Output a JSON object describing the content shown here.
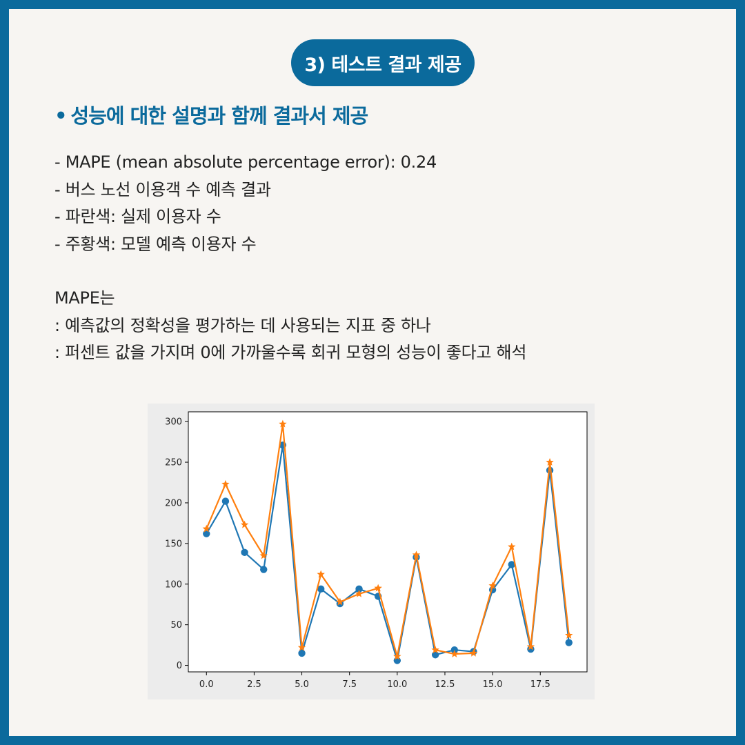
{
  "section_pill": "3) 테스트 결과 제공",
  "heading": {
    "bullet": "•",
    "text": "성능에 대한 설명과 함께 결과서 제공"
  },
  "lines": [
    "- MAPE (mean absolute percentage error): 0.24",
    "- 버스 노선 이용객 수 예측 결과",
    "- 파란색: 실제 이용자 수",
    "- 주황색: 모델 예측 이용자 수"
  ],
  "mape_lines": [
    "MAPE는",
    ": 예측값의 정확성을 평가하는 데 사용되는 지표 중 하나",
    ": 퍼센트 값을 가지며 0에 가까울수록 회귀 모형의 성능이 좋다고 해석"
  ],
  "colors": {
    "brand": "#0b6a9c",
    "actual": "#1f77b4",
    "predicted": "#ff7f0e"
  },
  "chart_data": {
    "type": "line",
    "title": "",
    "xlabel": "",
    "ylabel": "",
    "xlim": [
      -0.95,
      19.95
    ],
    "ylim": [
      -8,
      312
    ],
    "xticks": [
      0.0,
      2.5,
      5.0,
      7.5,
      10.0,
      12.5,
      15.0,
      17.5
    ],
    "xtick_labels": [
      "0.0",
      "2.5",
      "5.0",
      "7.5",
      "10.0",
      "12.5",
      "15.0",
      "17.5"
    ],
    "yticks": [
      0,
      50,
      100,
      150,
      200,
      250,
      300
    ],
    "ytick_labels": [
      "0",
      "50",
      "100",
      "150",
      "200",
      "250",
      "300"
    ],
    "grid": false,
    "x": [
      0,
      1,
      2,
      3,
      4,
      5,
      6,
      7,
      8,
      9,
      10,
      11,
      12,
      13,
      14,
      15,
      16,
      17,
      18,
      19
    ],
    "series": [
      {
        "color": "#1f77b4",
        "marker": "circle",
        "values": [
          162,
          202,
          139,
          118,
          271,
          15,
          94,
          76,
          94,
          85,
          6,
          133,
          13,
          19,
          17,
          93,
          124,
          20,
          240,
          28
        ]
      },
      {
        "color": "#ff7f0e",
        "marker": "star",
        "values": [
          168,
          223,
          173,
          135,
          297,
          22,
          112,
          78,
          88,
          95,
          11,
          136,
          19,
          14,
          15,
          98,
          146,
          23,
          250,
          37
        ]
      }
    ]
  }
}
